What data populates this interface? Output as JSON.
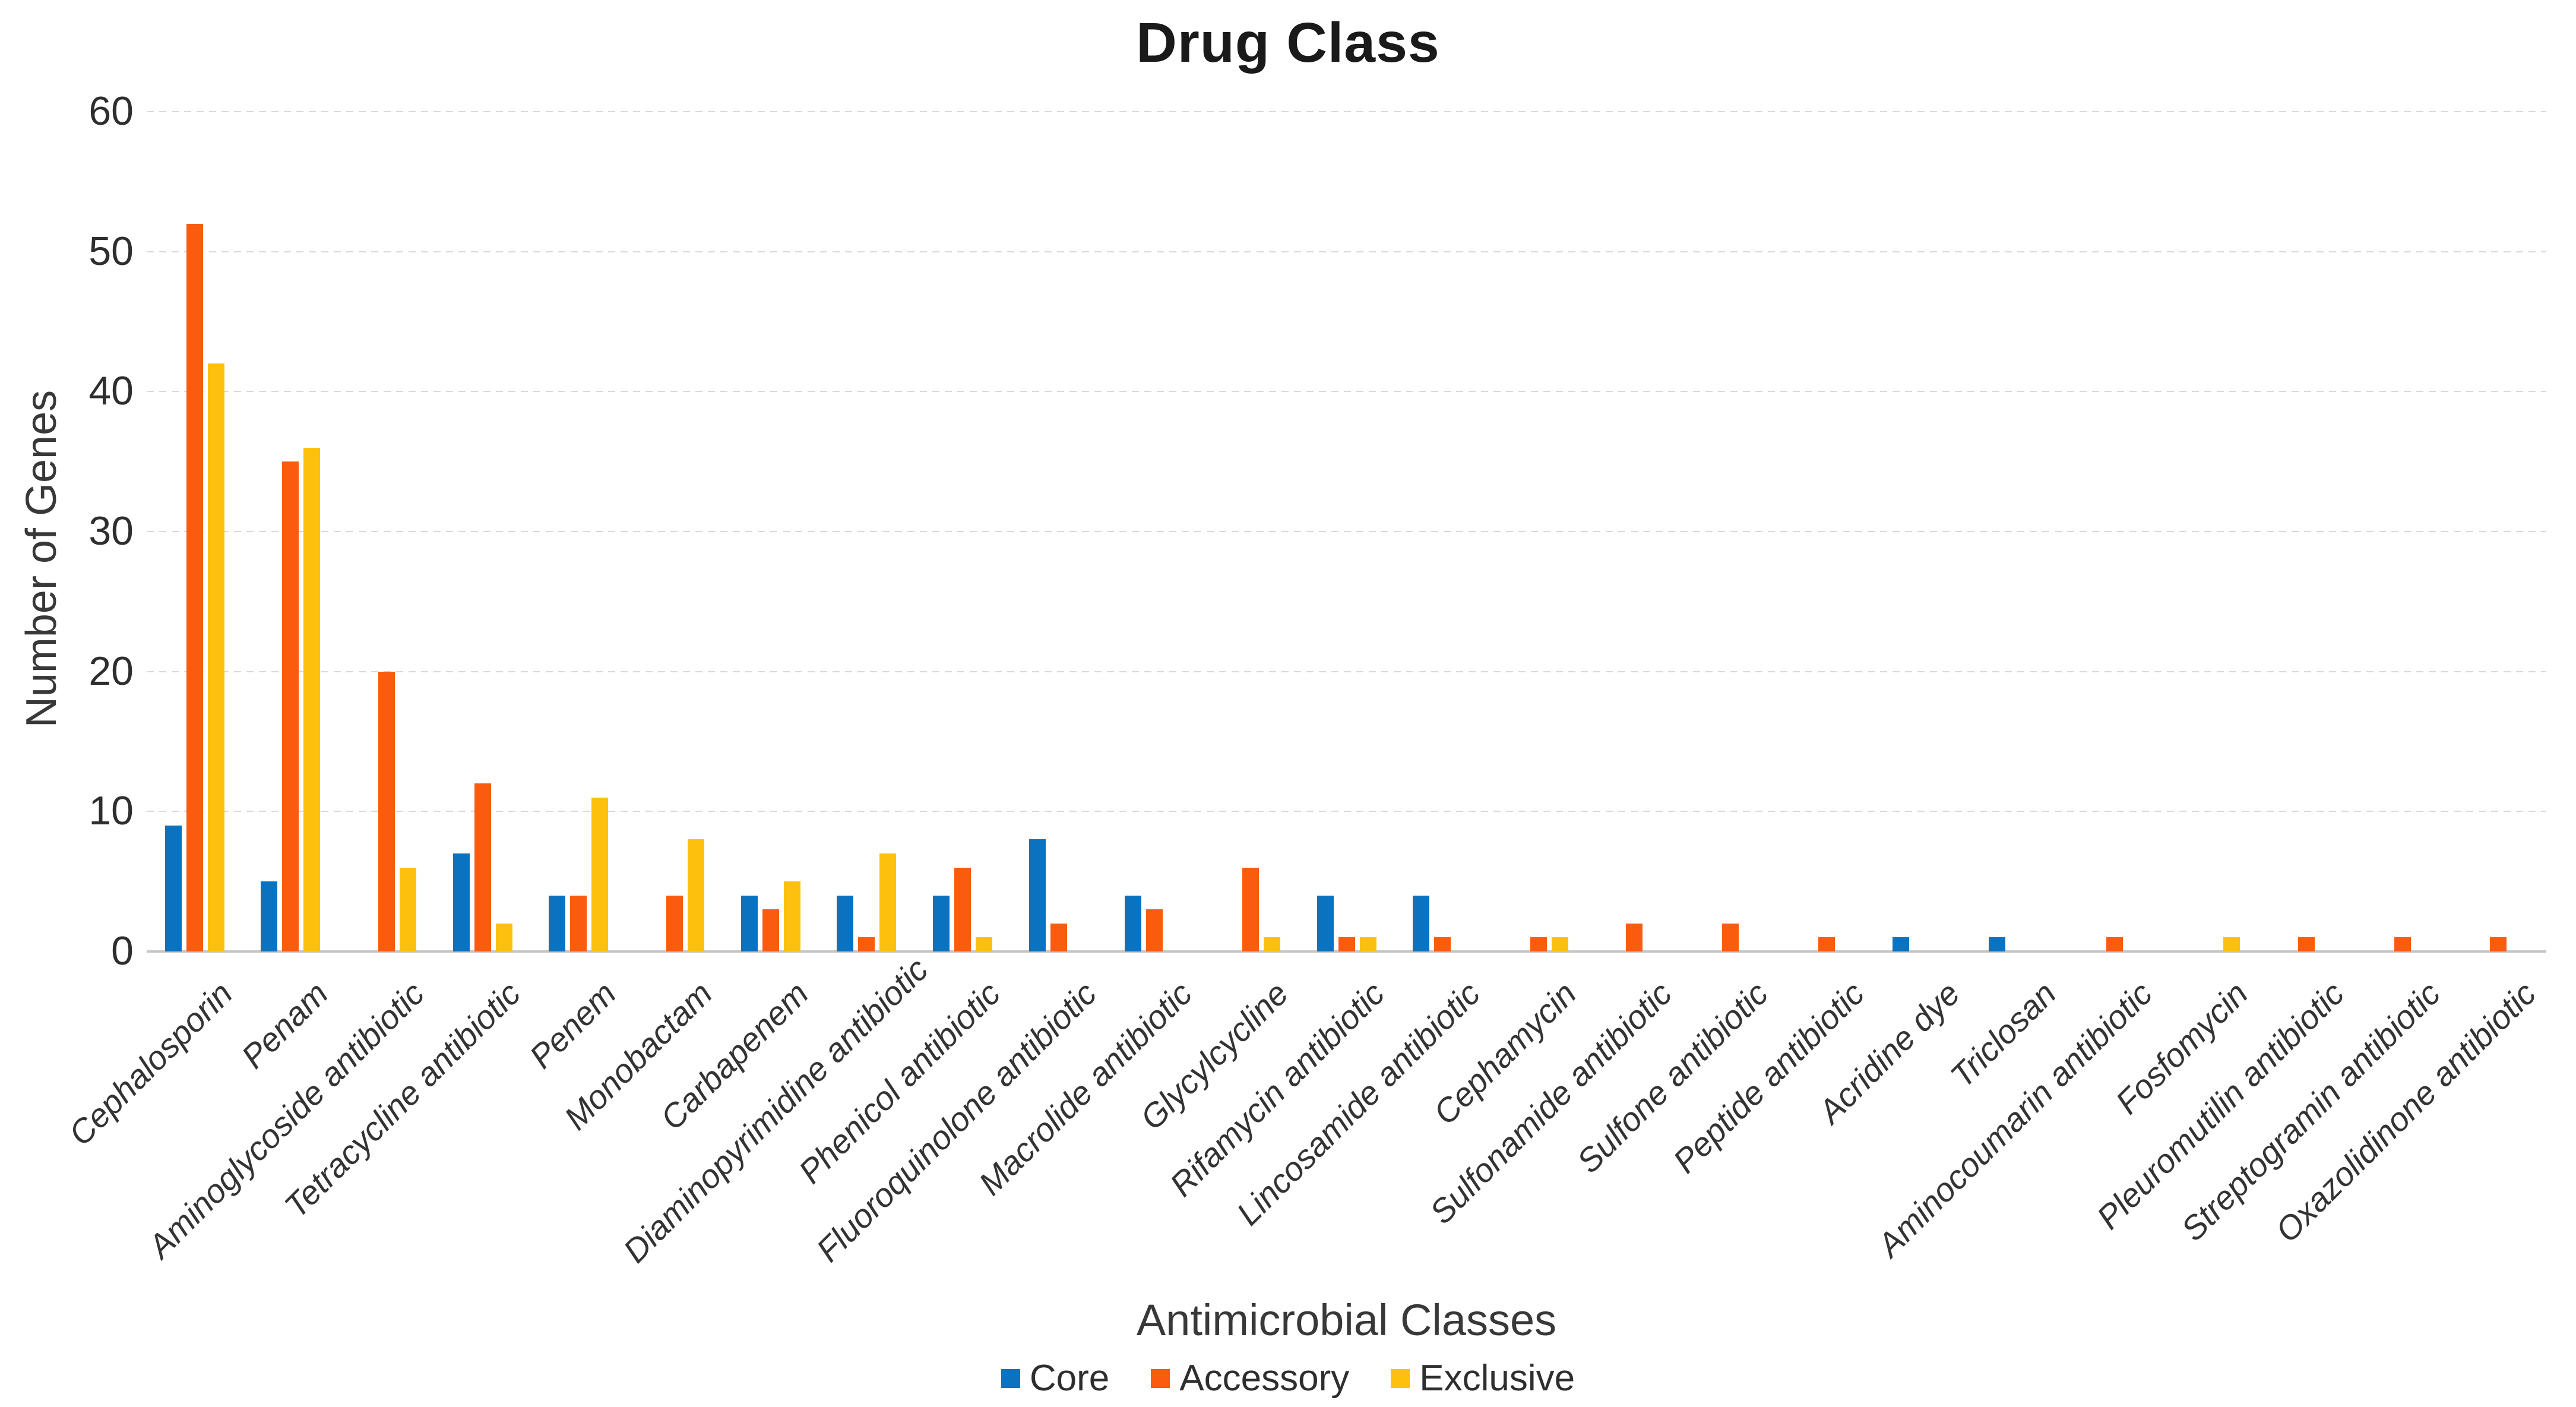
{
  "chart_data": {
    "type": "bar",
    "title": "Drug Class",
    "xlabel": "Antimicrobial Classes",
    "ylabel": "Number of Genes",
    "ylim": [
      0,
      60
    ],
    "ytick_step": 10,
    "grid": "horizontal-dashed",
    "legend_position": "bottom-center",
    "categories": [
      "Cephalosporin",
      "Penam",
      "Aminoglycoside antibiotic",
      "Tetracycline antibiotic",
      "Penem",
      "Monobactam",
      "Carbapenem",
      "Diaminopyrimidine antibiotic",
      "Phenicol antibiotic",
      "Fluoroquinolone antibiotic",
      "Macrolide antibiotic",
      "Glycylcycline",
      "Rifamycin antibiotic",
      "Lincosamide antibiotic",
      "Cephamycin",
      "Sulfonamide antibiotic",
      "Sulfone antibiotic",
      "Peptide antibiotic",
      "Acridine dye",
      "Triclosan",
      "Aminocoumarin antibiotic",
      "Fosfomycin",
      "Pleuromutilin antibiotic",
      "Streptogramin antibiotic",
      "Oxazolidinone antibiotic"
    ],
    "series": [
      {
        "name": "Core",
        "color": "#0b72c0",
        "values": [
          9,
          5,
          0,
          7,
          4,
          0,
          4,
          4,
          4,
          8,
          4,
          0,
          4,
          4,
          0,
          0,
          0,
          0,
          1,
          1,
          0,
          0,
          0,
          0,
          0
        ]
      },
      {
        "name": "Accessory",
        "color": "#f95c0e",
        "values": [
          52,
          35,
          20,
          12,
          4,
          4,
          3,
          1,
          6,
          2,
          3,
          6,
          1,
          1,
          1,
          2,
          2,
          1,
          0,
          0,
          1,
          0,
          1,
          1,
          1
        ]
      },
      {
        "name": "Exclusive",
        "color": "#fdc00d",
        "values": [
          42,
          36,
          6,
          2,
          11,
          8,
          5,
          7,
          1,
          0,
          0,
          1,
          1,
          0,
          1,
          0,
          0,
          0,
          0,
          0,
          0,
          1,
          0,
          0,
          0
        ]
      }
    ],
    "colors": {
      "grid": "#d9d9d9",
      "axis": "#c6c6c6",
      "text": "#2e2e2e"
    },
    "yticks": [
      0,
      10,
      20,
      30,
      40,
      50,
      60
    ]
  }
}
